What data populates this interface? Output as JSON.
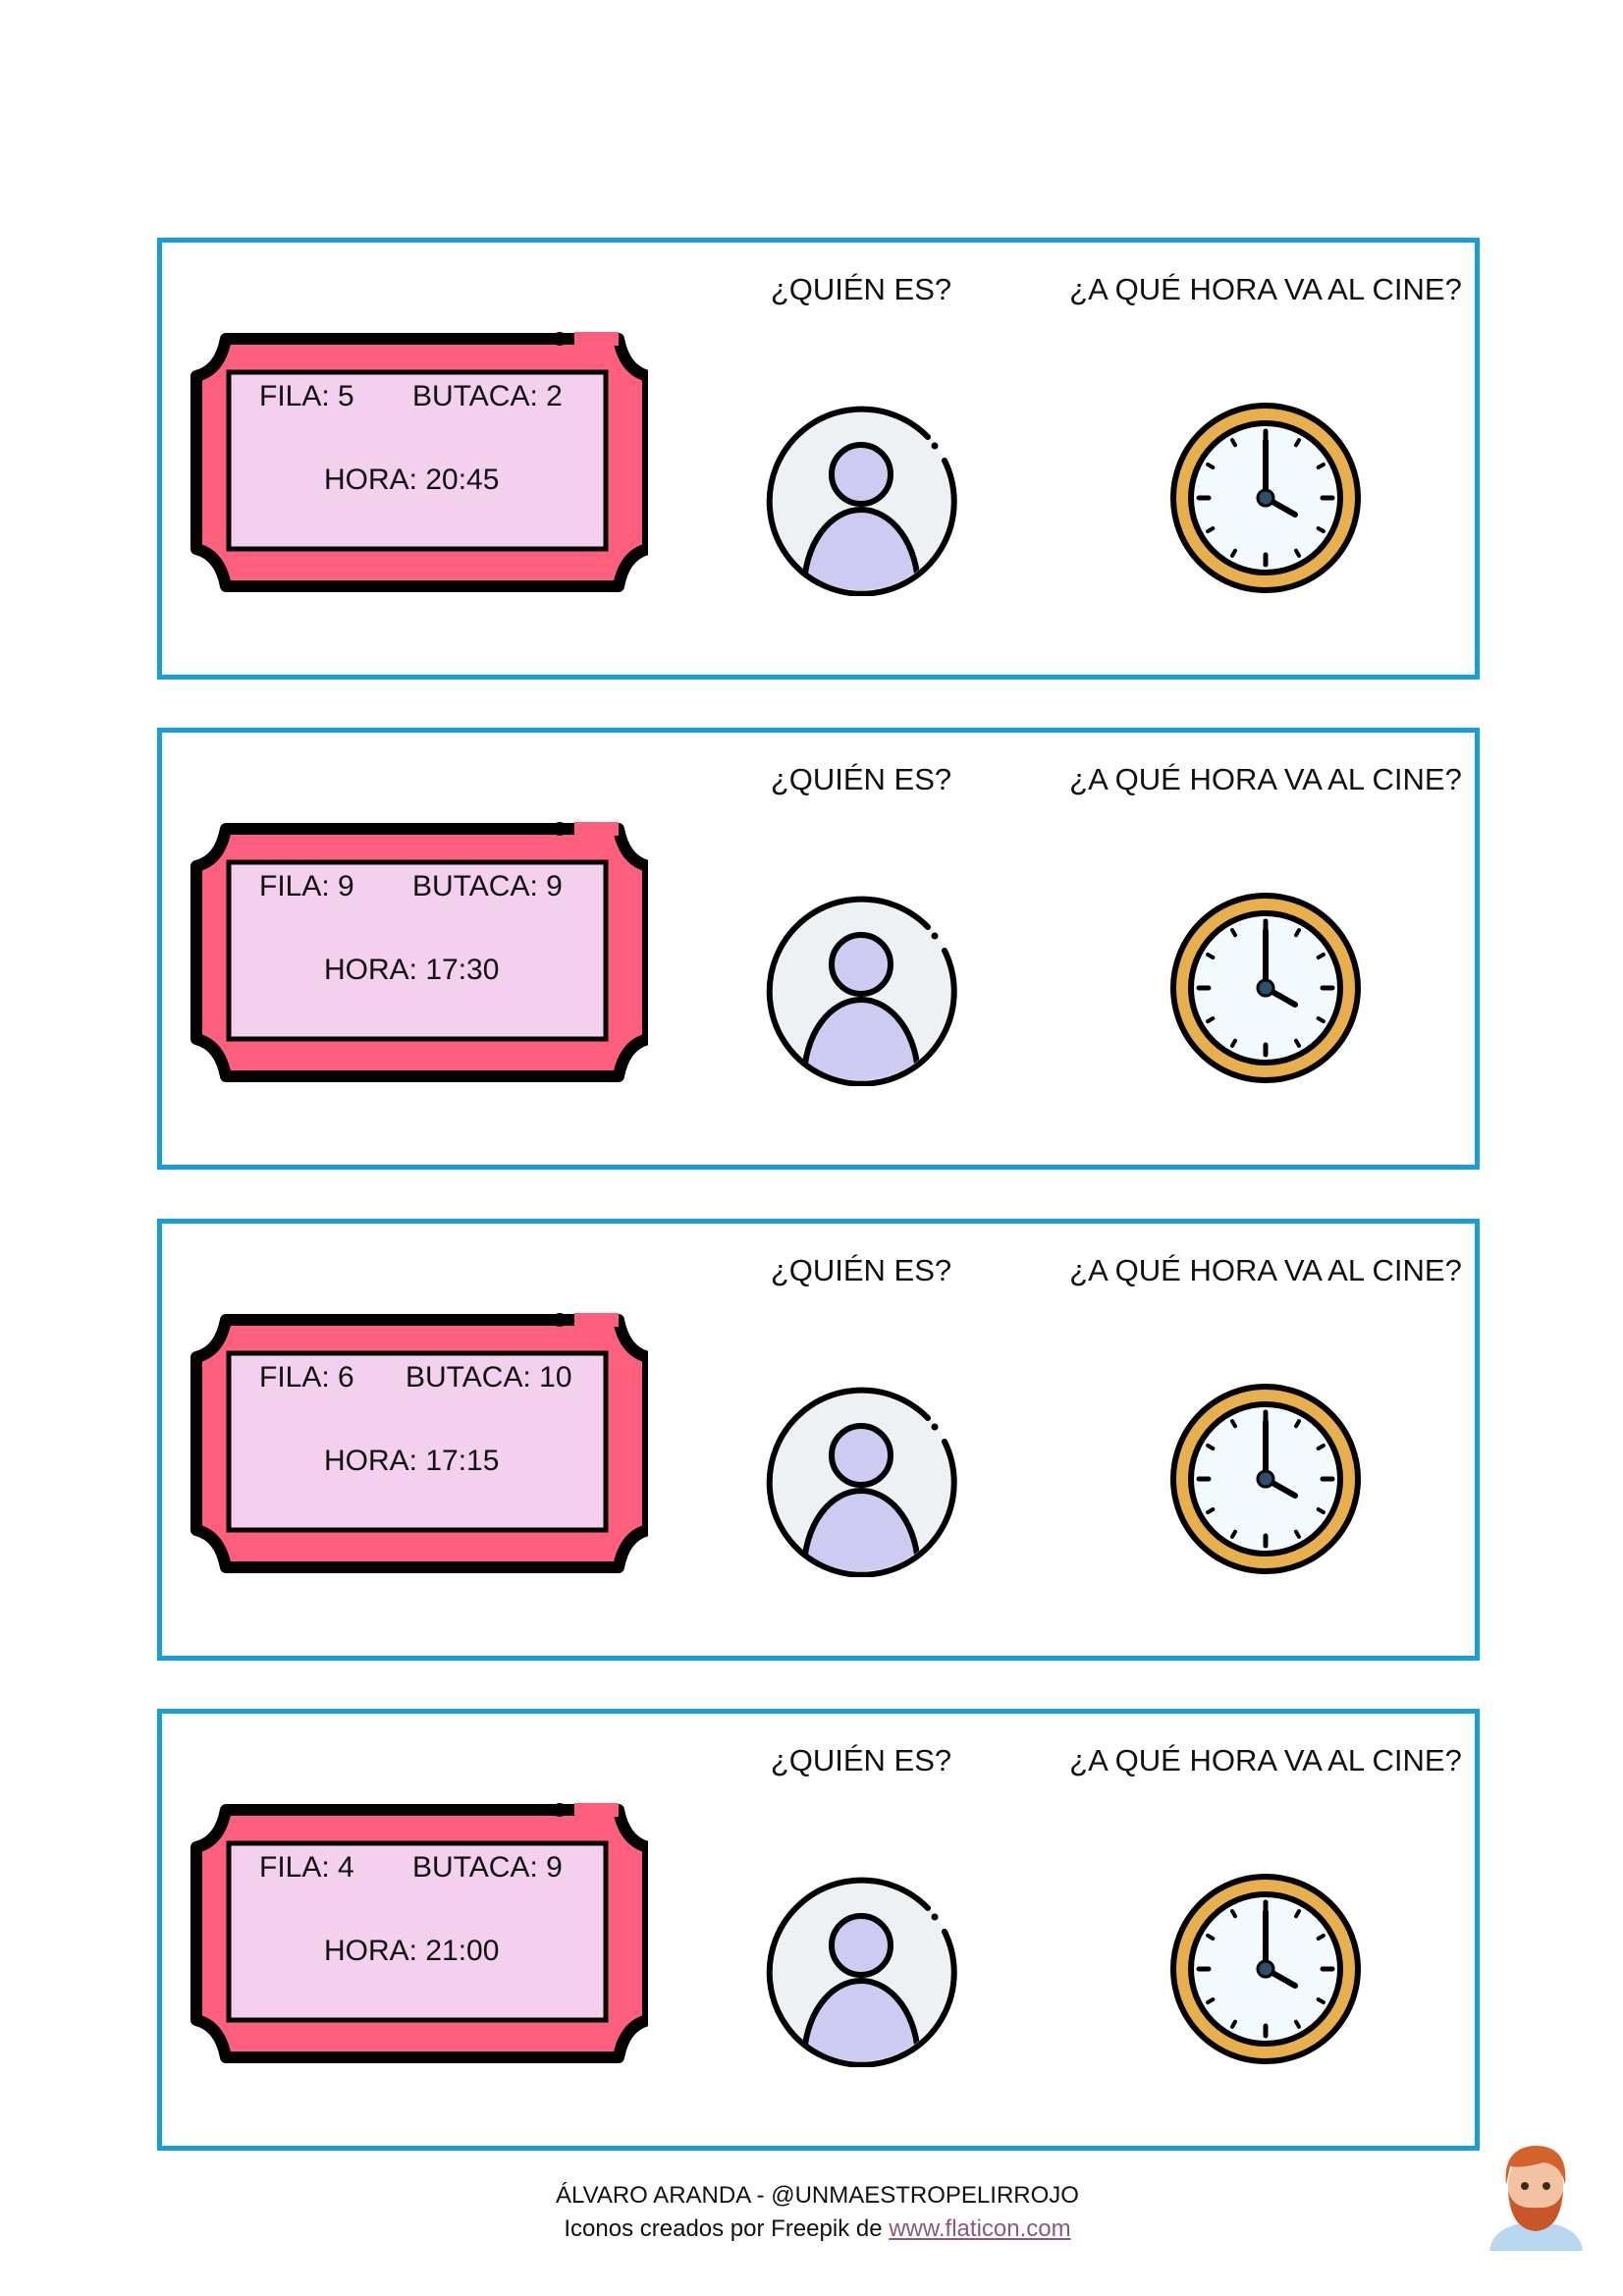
{
  "questions": {
    "who": "¿QUIÉN ES?",
    "when": "¿A QUÉ HORA VA AL CINE?"
  },
  "cards": [
    {
      "fila": "FILA: 5",
      "butaca": "BUTACA: 2",
      "hora": "HORA:  20:45"
    },
    {
      "fila": "FILA: 9",
      "butaca": "BUTACA: 9",
      "hora": "HORA:  17:30"
    },
    {
      "fila": "FILA: 6",
      "butaca": "BUTACA: 10",
      "hora": "HORA:  17:15"
    },
    {
      "fila": "FILA: 4",
      "butaca": "BUTACA: 9",
      "hora": "HORA:  21:00"
    }
  ],
  "footer": {
    "author": "ÁLVARO ARANDA - @UNMAESTROPELIRROJO",
    "credit_prefix": "Iconos creados por Freepik de ",
    "credit_link": "www.flaticon.com"
  },
  "colors": {
    "border": "#159fd6",
    "ticket": "#fd5f7c",
    "ticket_inner": "#f2d0ee",
    "clock_rim": "#e8b04d",
    "person_bg": "#edf1f4",
    "person_fill": "#cdcbf1"
  }
}
